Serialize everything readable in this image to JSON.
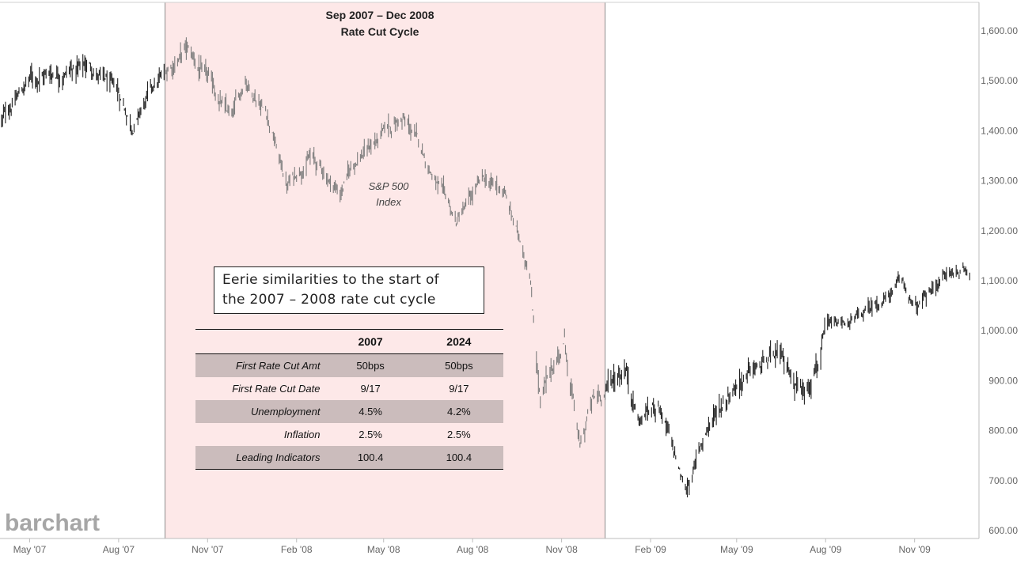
{
  "chart_data": {
    "type": "bar",
    "subtype": "ohlc-price-bars",
    "series": [
      {
        "name": "S&P 500 Index",
        "color": "#222222",
        "shaded_color": "#7d7d7d"
      }
    ],
    "monthly_close": [
      [
        "2007-04-02",
        1420
      ],
      [
        "2007-05-01",
        1505
      ],
      [
        "2007-06-01",
        1520
      ],
      [
        "2007-07-02",
        1530
      ],
      [
        "2007-08-01",
        1470
      ],
      [
        "2007-08-16",
        1410
      ],
      [
        "2007-09-03",
        1475
      ],
      [
        "2007-10-09",
        1565
      ],
      [
        "2007-11-01",
        1500
      ],
      [
        "2007-11-26",
        1420
      ],
      [
        "2007-12-10",
        1505
      ],
      [
        "2008-01-01",
        1440
      ],
      [
        "2008-01-22",
        1290
      ],
      [
        "2008-02-15",
        1350
      ],
      [
        "2008-03-17",
        1275
      ],
      [
        "2008-04-01",
        1340
      ],
      [
        "2008-05-19",
        1425
      ],
      [
        "2008-06-02",
        1390
      ],
      [
        "2008-07-15",
        1215
      ],
      [
        "2008-08-11",
        1300
      ],
      [
        "2008-09-02",
        1280
      ],
      [
        "2008-09-29",
        1120
      ],
      [
        "2008-10-10",
        860
      ],
      [
        "2008-11-04",
        980
      ],
      [
        "2008-11-20",
        760
      ],
      [
        "2008-12-01",
        850
      ],
      [
        "2009-01-06",
        930
      ],
      [
        "2009-01-20",
        820
      ],
      [
        "2009-02-09",
        860
      ],
      [
        "2009-03-09",
        675
      ],
      [
        "2009-04-01",
        810
      ],
      [
        "2009-05-01",
        900
      ],
      [
        "2009-06-12",
        945
      ],
      [
        "2009-07-10",
        880
      ],
      [
        "2009-08-03",
        1000
      ],
      [
        "2009-09-01",
        1020
      ],
      [
        "2009-10-20",
        1095
      ],
      [
        "2009-11-02",
        1040
      ],
      [
        "2009-12-01",
        1110
      ],
      [
        "2009-12-28",
        1125
      ]
    ],
    "x_range": [
      "2007-04-02",
      "2009-12-31"
    ],
    "x_ticks": [
      {
        "label": "May '07",
        "date": "2007-05-01"
      },
      {
        "label": "Aug '07",
        "date": "2007-08-01"
      },
      {
        "label": "Nov '07",
        "date": "2007-11-01"
      },
      {
        "label": "Feb '08",
        "date": "2008-02-01"
      },
      {
        "label": "May '08",
        "date": "2008-05-01"
      },
      {
        "label": "Aug '08",
        "date": "2008-08-01"
      },
      {
        "label": "Nov '08",
        "date": "2008-11-01"
      },
      {
        "label": "Feb '09",
        "date": "2009-02-01"
      },
      {
        "label": "May '09",
        "date": "2009-05-01"
      },
      {
        "label": "Aug '09",
        "date": "2009-08-01"
      },
      {
        "label": "Nov '09",
        "date": "2009-11-01"
      }
    ],
    "ylim": [
      600,
      1650
    ],
    "y_ticks": [
      {
        "label": "1,600.00",
        "value": 1600
      },
      {
        "label": "1,500.00",
        "value": 1500
      },
      {
        "label": "1,400.00",
        "value": 1400
      },
      {
        "label": "1,300.00",
        "value": 1300
      },
      {
        "label": "1,200.00",
        "value": 1200
      },
      {
        "label": "1,100.00",
        "value": 1100
      },
      {
        "label": "1,000.00",
        "value": 1000
      },
      {
        "label": "900.00",
        "value": 900
      },
      {
        "label": "800.00",
        "value": 800
      },
      {
        "label": "700.00",
        "value": 700
      },
      {
        "label": "600.00",
        "value": 600
      }
    ],
    "y_axis_side": "right",
    "grid": false,
    "shaded_region": {
      "start": "2007-09-18",
      "end": "2008-12-16",
      "title_line1": "Sep 2007 – Dec 2008",
      "title_line2": "Rate Cut Cycle",
      "color": "#fde8e8"
    },
    "annotation": {
      "line1": "S&P 500",
      "line2": "Index"
    }
  },
  "note": {
    "line1": "Eerie similarities to the start of",
    "line2": "the 2007 – 2008 rate cut cycle"
  },
  "table": {
    "headers": [
      "",
      "2007",
      "2024"
    ],
    "rows": [
      {
        "label": "First Rate Cut Amt",
        "v2007": "50bps",
        "v2024": "50bps",
        "banded": true
      },
      {
        "label": "First Rate Cut Date",
        "v2007": "9/17",
        "v2024": "9/17",
        "banded": false
      },
      {
        "label": "Unemployment",
        "v2007": "4.5%",
        "v2024": "4.2%",
        "banded": true
      },
      {
        "label": "Inflation",
        "v2007": "2.5%",
        "v2024": "2.5%",
        "banded": false
      },
      {
        "label": "Leading Indicators",
        "v2007": "100.4",
        "v2024": "100.4",
        "banded": true
      }
    ]
  },
  "watermark": "barchart"
}
